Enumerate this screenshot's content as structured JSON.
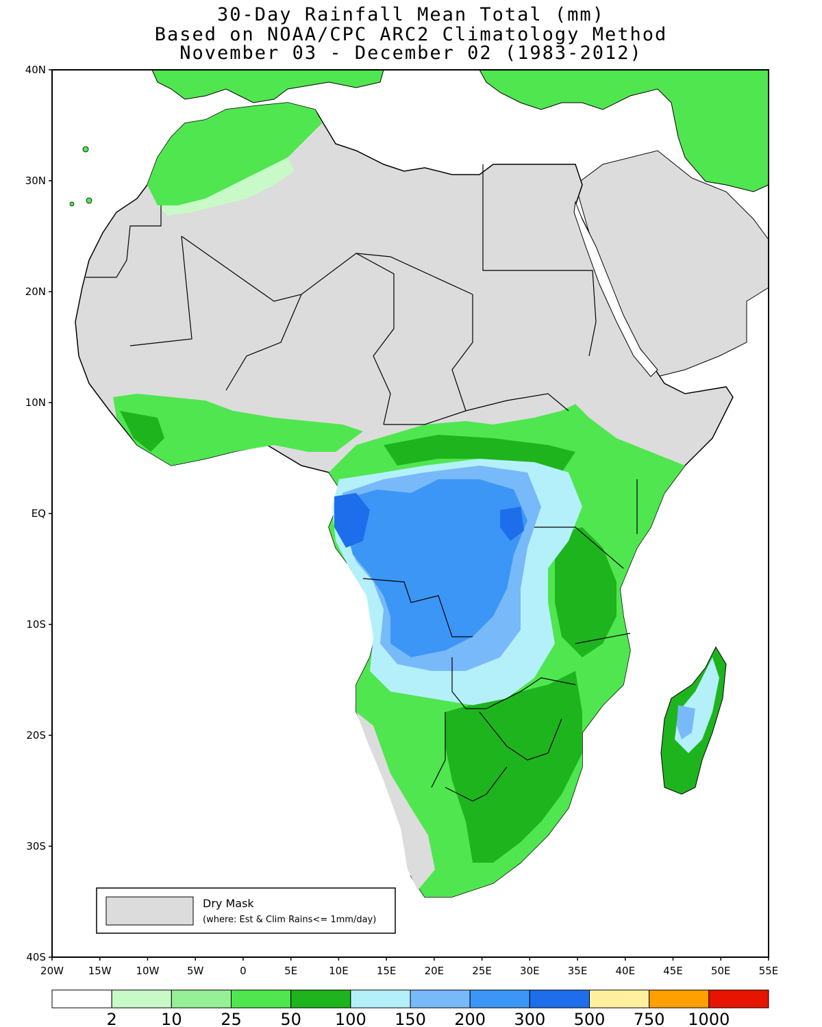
{
  "title": {
    "line1": "30-Day Rainfall Mean Total (mm)",
    "line2": "Based on NOAA/CPC ARC2 Climatology Method",
    "line3": "November 03 - December 02 (1983-2012)"
  },
  "axes": {
    "lat_ticks": [
      "40N",
      "30N",
      "20N",
      "10N",
      "EQ",
      "10S",
      "20S",
      "30S",
      "40S"
    ],
    "lon_ticks": [
      "20W",
      "15W",
      "10W",
      "5W",
      "0",
      "5E",
      "10E",
      "15E",
      "20E",
      "25E",
      "30E",
      "35E",
      "40E",
      "45E",
      "50E",
      "55E"
    ],
    "lat_range": [
      -40,
      40
    ],
    "lon_range": [
      -20,
      55
    ]
  },
  "dry_mask_legend": {
    "label": "Dry Mask",
    "note": "(where: Est & Clim Rains<= 1mm/day)",
    "color": "#dcdcdc"
  },
  "colorbar": {
    "colors": [
      "#ffffff",
      "#c8fac8",
      "#96f096",
      "#50e650",
      "#1eb41e",
      "#b4f0fa",
      "#78b9fa",
      "#3c96f5",
      "#1e6eeb",
      "#fff0a0",
      "#ffa000",
      "#e61400"
    ],
    "labels": [
      "2",
      "10",
      "25",
      "50",
      "100",
      "150",
      "200",
      "300",
      "500",
      "750",
      "1000"
    ]
  }
}
